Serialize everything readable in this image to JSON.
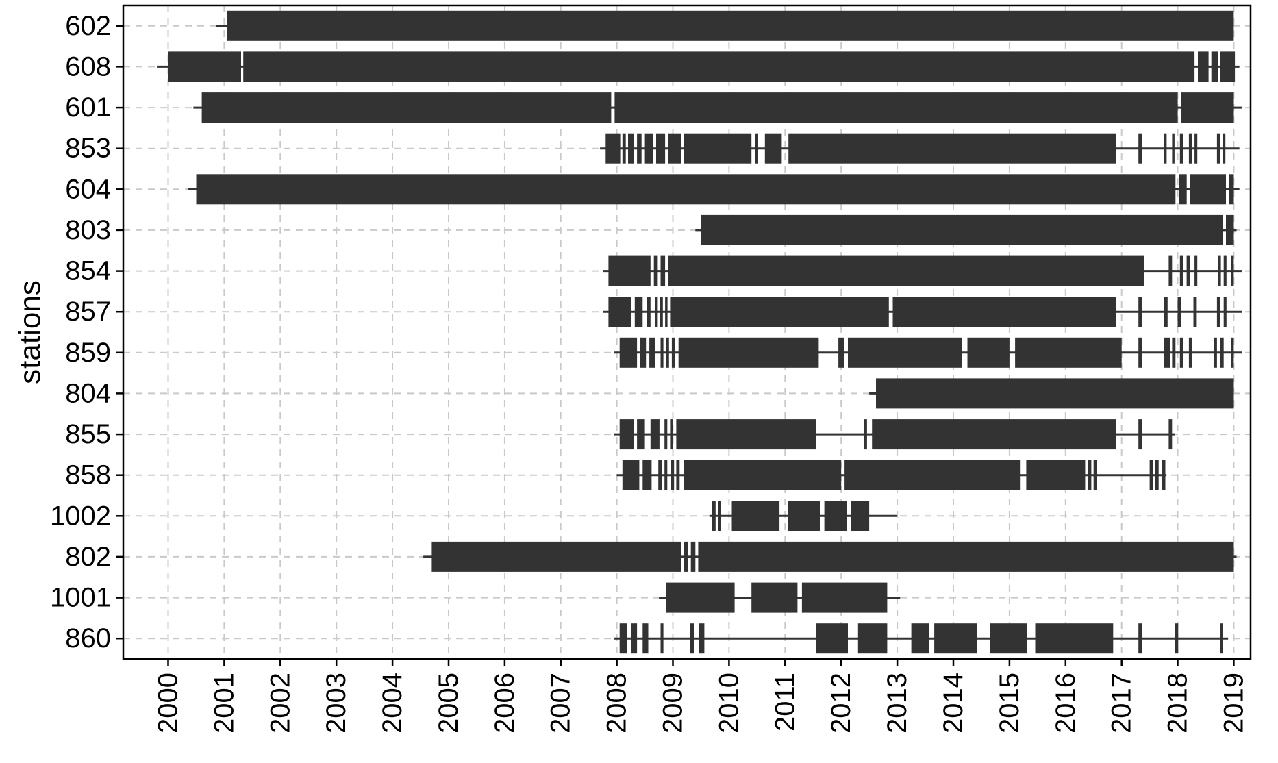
{
  "chart_data": {
    "type": "gantt",
    "title": "",
    "xlabel": "",
    "ylabel": "stations",
    "orientation": "horizontal",
    "grid": "dashed",
    "legend": "none",
    "bar_color": "#333333",
    "grid_color": "#c9c9c9",
    "axis_color": "#000000",
    "background_color": "#ffffff",
    "xlim": [
      1999.2,
      2019.3
    ],
    "x_ticks": [
      2000,
      2001,
      2002,
      2003,
      2004,
      2005,
      2006,
      2007,
      2008,
      2009,
      2010,
      2011,
      2012,
      2013,
      2014,
      2015,
      2016,
      2017,
      2018,
      2019
    ],
    "stations": [
      {
        "id": "602",
        "line": [
          2000.85,
          2019.0
        ],
        "segments": [
          [
            2001.05,
            2019.0
          ]
        ]
      },
      {
        "id": "608",
        "line": [
          1999.8,
          2019.1
        ],
        "segments": [
          [
            2000.0,
            2001.3
          ],
          [
            2001.34,
            2018.3
          ],
          [
            2018.36,
            2018.55
          ],
          [
            2018.6,
            2018.72
          ],
          [
            2018.76,
            2019.02
          ]
        ]
      },
      {
        "id": "601",
        "line": [
          2000.45,
          2019.15
        ],
        "segments": [
          [
            2000.6,
            2007.9
          ],
          [
            2007.96,
            2018.0
          ],
          [
            2018.06,
            2019.0
          ]
        ]
      },
      {
        "id": "853",
        "line": [
          2007.7,
          2019.1
        ],
        "segments": [
          [
            2007.8,
            2008.06
          ],
          [
            2008.1,
            2008.16
          ],
          [
            2008.2,
            2008.3
          ],
          [
            2008.36,
            2008.44
          ],
          [
            2008.5,
            2008.64
          ],
          [
            2008.7,
            2008.86
          ],
          [
            2008.92,
            2009.14
          ],
          [
            2009.2,
            2010.4
          ],
          [
            2010.46,
            2010.52
          ],
          [
            2010.64,
            2010.94
          ],
          [
            2011.06,
            2016.9
          ],
          [
            2017.3,
            2017.36
          ],
          [
            2017.76,
            2017.8
          ],
          [
            2017.9,
            2017.94
          ],
          [
            2018.04,
            2018.1
          ],
          [
            2018.2,
            2018.25
          ],
          [
            2018.3,
            2018.35
          ],
          [
            2018.7,
            2018.75
          ],
          [
            2018.8,
            2018.85
          ]
        ]
      },
      {
        "id": "604",
        "line": [
          2000.35,
          2019.1
        ],
        "segments": [
          [
            2000.5,
            2017.96
          ],
          [
            2018.02,
            2018.16
          ],
          [
            2018.22,
            2018.86
          ],
          [
            2018.92,
            2019.0
          ]
        ]
      },
      {
        "id": "803",
        "line": [
          2009.4,
          2019.05
        ],
        "segments": [
          [
            2009.5,
            2018.8
          ],
          [
            2018.86,
            2019.0
          ]
        ]
      },
      {
        "id": "854",
        "line": [
          2007.75,
          2019.15
        ],
        "segments": [
          [
            2007.85,
            2008.6
          ],
          [
            2008.66,
            2008.73
          ],
          [
            2008.78,
            2008.86
          ],
          [
            2008.92,
            2017.4
          ],
          [
            2017.84,
            2017.9
          ],
          [
            2018.04,
            2018.1
          ],
          [
            2018.16,
            2018.22
          ],
          [
            2018.3,
            2018.35
          ],
          [
            2018.72,
            2018.77
          ],
          [
            2018.82,
            2018.87
          ],
          [
            2018.95,
            2019.0
          ]
        ]
      },
      {
        "id": "857",
        "line": [
          2007.75,
          2019.15
        ],
        "segments": [
          [
            2007.85,
            2008.26
          ],
          [
            2008.32,
            2008.46
          ],
          [
            2008.54,
            2008.6
          ],
          [
            2008.68,
            2008.73
          ],
          [
            2008.77,
            2008.82
          ],
          [
            2008.86,
            2008.9
          ],
          [
            2008.95,
            2012.85
          ],
          [
            2012.92,
            2016.9
          ],
          [
            2017.3,
            2017.36
          ],
          [
            2017.76,
            2017.82
          ],
          [
            2018.0,
            2018.06
          ],
          [
            2018.28,
            2018.34
          ],
          [
            2018.7,
            2018.75
          ],
          [
            2018.82,
            2018.87
          ]
        ]
      },
      {
        "id": "859",
        "line": [
          2007.95,
          2019.15
        ],
        "segments": [
          [
            2008.05,
            2008.36
          ],
          [
            2008.42,
            2008.52
          ],
          [
            2008.58,
            2008.68
          ],
          [
            2008.78,
            2008.83
          ],
          [
            2008.88,
            2008.93
          ],
          [
            2008.98,
            2009.03
          ],
          [
            2009.1,
            2011.6
          ],
          [
            2011.95,
            2012.05
          ],
          [
            2012.12,
            2014.15
          ],
          [
            2014.25,
            2015.0
          ],
          [
            2015.1,
            2017.0
          ],
          [
            2017.3,
            2017.36
          ],
          [
            2017.76,
            2017.86
          ],
          [
            2017.9,
            2017.96
          ],
          [
            2018.04,
            2018.1
          ],
          [
            2018.2,
            2018.26
          ],
          [
            2018.64,
            2018.7
          ],
          [
            2018.76,
            2018.82
          ],
          [
            2018.95,
            2019.0
          ]
        ]
      },
      {
        "id": "804",
        "line": [
          2012.5,
          2019.0
        ],
        "segments": [
          [
            2012.62,
            2019.0
          ]
        ]
      },
      {
        "id": "855",
        "line": [
          2007.95,
          2017.95
        ],
        "segments": [
          [
            2008.05,
            2008.3
          ],
          [
            2008.36,
            2008.5
          ],
          [
            2008.6,
            2008.76
          ],
          [
            2008.85,
            2008.9
          ],
          [
            2008.95,
            2009.0
          ],
          [
            2009.06,
            2011.55
          ],
          [
            2012.4,
            2012.46
          ],
          [
            2012.55,
            2016.9
          ],
          [
            2017.3,
            2017.36
          ],
          [
            2017.84,
            2017.9
          ]
        ]
      },
      {
        "id": "858",
        "line": [
          2008.0,
          2017.8
        ],
        "segments": [
          [
            2008.1,
            2008.4
          ],
          [
            2008.46,
            2008.62
          ],
          [
            2008.74,
            2008.8
          ],
          [
            2008.85,
            2008.9
          ],
          [
            2008.96,
            2009.02
          ],
          [
            2009.06,
            2009.12
          ],
          [
            2009.2,
            2012.0
          ],
          [
            2012.06,
            2015.2
          ],
          [
            2015.3,
            2016.35
          ],
          [
            2016.4,
            2016.46
          ],
          [
            2016.5,
            2016.56
          ],
          [
            2017.5,
            2017.56
          ],
          [
            2017.6,
            2017.66
          ],
          [
            2017.72,
            2017.78
          ]
        ]
      },
      {
        "id": "1002",
        "line": [
          2009.65,
          2013.0
        ],
        "segments": [
          [
            2009.7,
            2009.76
          ],
          [
            2009.8,
            2009.85
          ],
          [
            2010.05,
            2010.9
          ],
          [
            2011.05,
            2011.62
          ],
          [
            2011.7,
            2012.1
          ],
          [
            2012.18,
            2012.5
          ]
        ]
      },
      {
        "id": "802",
        "line": [
          2004.55,
          2019.05
        ],
        "segments": [
          [
            2004.7,
            2009.15
          ],
          [
            2009.2,
            2009.27
          ],
          [
            2009.32,
            2009.4
          ],
          [
            2009.45,
            2019.0
          ]
        ]
      },
      {
        "id": "1001",
        "line": [
          2008.75,
          2013.05
        ],
        "segments": [
          [
            2008.88,
            2010.1
          ],
          [
            2010.4,
            2011.22
          ],
          [
            2011.3,
            2012.82
          ]
        ]
      },
      {
        "id": "860",
        "line": [
          2007.95,
          2018.9
        ],
        "segments": [
          [
            2008.05,
            2008.18
          ],
          [
            2008.25,
            2008.36
          ],
          [
            2008.46,
            2008.56
          ],
          [
            2008.78,
            2008.83
          ],
          [
            2009.3,
            2009.38
          ],
          [
            2009.46,
            2009.56
          ],
          [
            2011.55,
            2012.12
          ],
          [
            2012.3,
            2012.82
          ],
          [
            2013.25,
            2013.56
          ],
          [
            2013.66,
            2014.42
          ],
          [
            2014.66,
            2015.32
          ],
          [
            2015.46,
            2016.85
          ],
          [
            2017.3,
            2017.36
          ],
          [
            2017.95,
            2018.01
          ],
          [
            2018.75,
            2018.81
          ]
        ]
      }
    ]
  }
}
